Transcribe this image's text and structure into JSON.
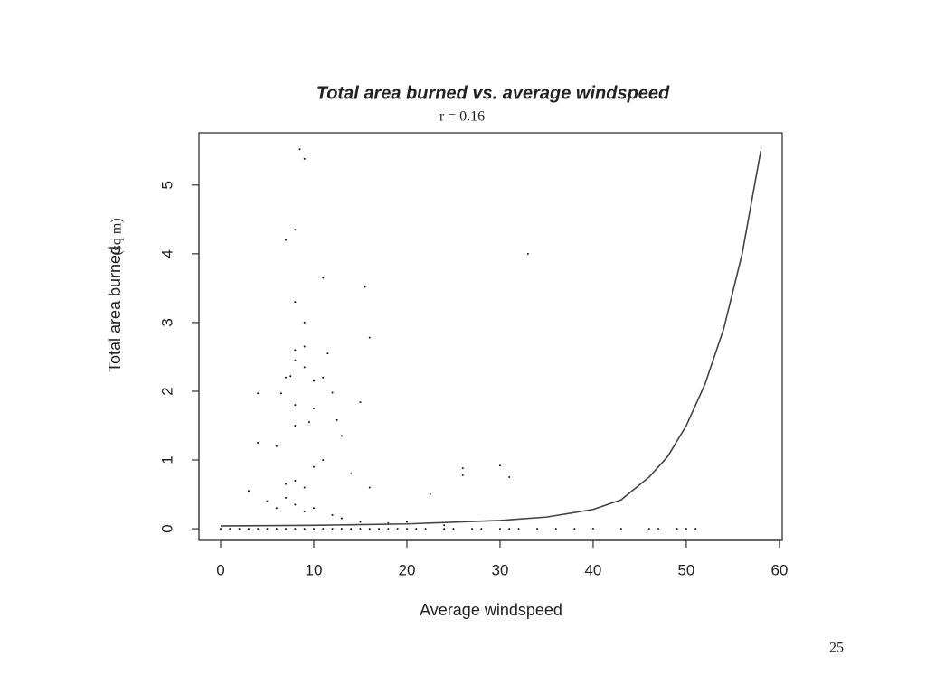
{
  "chart_data": {
    "type": "scatter",
    "title": "Total area burned vs. average windspeed",
    "subtitle": "r = 0.16",
    "x_label": "Average windspeed",
    "y_label": "Total area burned",
    "y_label_unit": "(sq m)",
    "page_number": "25",
    "xlim": [
      -2.33,
      60.3
    ],
    "ylim": [
      -0.17,
      5.76
    ],
    "xticks": [
      0,
      10,
      20,
      30,
      40,
      50,
      60
    ],
    "yticks": [
      0,
      1,
      2,
      3,
      4,
      5
    ],
    "series": [
      {
        "type": "scatter",
        "color": "#111111",
        "x": [
          8.5,
          9,
          8,
          7,
          33,
          11,
          15.5,
          8,
          16,
          9,
          8,
          9,
          11.5,
          8,
          9,
          7,
          7.5,
          10,
          11,
          4,
          6.5,
          12,
          15,
          8,
          10,
          12.5,
          8,
          9.5,
          4,
          6,
          13,
          26,
          26,
          30,
          31,
          22.5,
          3,
          8,
          7,
          9,
          10,
          11,
          14,
          16,
          5,
          6,
          7,
          8,
          9,
          10,
          12,
          13,
          15,
          18,
          20,
          24,
          0,
          1,
          2,
          3,
          4,
          5,
          6,
          7,
          8,
          9,
          10,
          11,
          12,
          13,
          14,
          15,
          16,
          17,
          18,
          19,
          20,
          21,
          22,
          24,
          25,
          27,
          28,
          30,
          31,
          32,
          34,
          36,
          38,
          40,
          43,
          46,
          47,
          49,
          50,
          51
        ],
        "values": [
          5.52,
          5.38,
          4.35,
          4.2,
          4.0,
          3.65,
          3.52,
          3.3,
          2.78,
          3.0,
          2.6,
          2.65,
          2.55,
          2.45,
          2.35,
          2.2,
          2.22,
          2.15,
          2.2,
          1.97,
          1.97,
          1.98,
          1.84,
          1.8,
          1.75,
          1.58,
          1.5,
          1.55,
          1.25,
          1.2,
          1.35,
          0.88,
          0.78,
          0.92,
          0.75,
          0.5,
          0.55,
          0.7,
          0.65,
          0.6,
          0.9,
          1.0,
          0.8,
          0.6,
          0.4,
          0.3,
          0.45,
          0.35,
          0.25,
          0.3,
          0.2,
          0.15,
          0.1,
          0.08,
          0.1,
          0.05,
          0,
          0,
          0,
          0,
          0,
          0,
          0,
          0,
          0,
          0,
          0,
          0,
          0,
          0,
          0,
          0,
          0,
          0,
          0,
          0,
          0,
          0,
          0,
          0,
          0,
          0,
          0,
          0,
          0,
          0,
          0,
          0,
          0,
          0,
          0,
          0,
          0,
          0,
          0,
          0
        ]
      },
      {
        "type": "line",
        "color": "#444444",
        "x": [
          0,
          10,
          20,
          30,
          35,
          40,
          43,
          46,
          48,
          50,
          52,
          54,
          56,
          58
        ],
        "values": [
          0.04,
          0.05,
          0.07,
          0.12,
          0.17,
          0.28,
          0.42,
          0.75,
          1.05,
          1.5,
          2.1,
          2.9,
          4.0,
          5.5
        ]
      }
    ]
  }
}
